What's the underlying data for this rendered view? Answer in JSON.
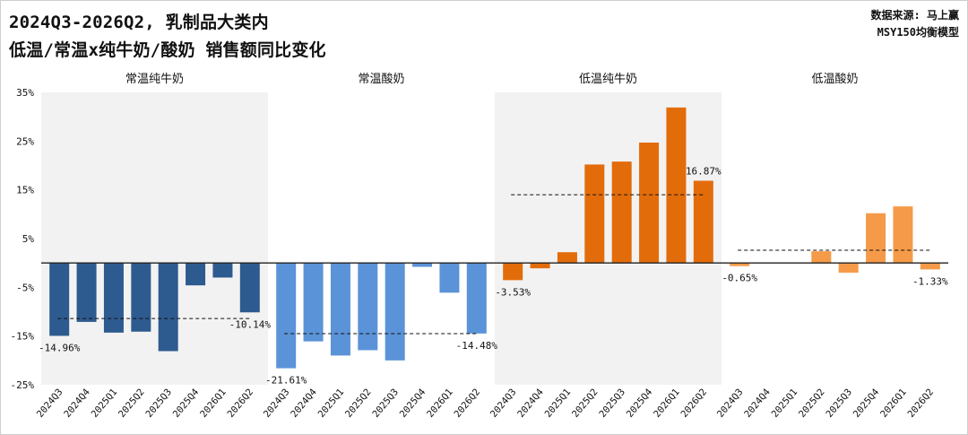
{
  "header": {
    "title_line1": "2024Q3-2026Q2, 乳制品大类内",
    "title_line2": "低温/常温x纯牛奶/酸奶 销售额同比变化",
    "source_line1": "数据来源: 马上赢",
    "source_line2": "MSY150均衡模型"
  },
  "chart_data": {
    "type": "bar",
    "y_ticks": [
      "35%",
      "25%",
      "15%",
      "5%",
      "-5%",
      "-15%",
      "-25%"
    ],
    "y_tick_values": [
      35,
      25,
      15,
      5,
      -5,
      -15,
      -25
    ],
    "ylim": [
      -25,
      35
    ],
    "categories": [
      "2024Q3",
      "2024Q4",
      "2025Q1",
      "2025Q2",
      "2025Q3",
      "2025Q4",
      "2026Q1",
      "2026Q2"
    ],
    "panels": [
      {
        "name": "常温纯牛奶",
        "color": "#2e5b8f",
        "background": "#f2f2f2",
        "values": [
          -14.96,
          -12.1,
          -14.3,
          -14.1,
          -18.1,
          -4.6,
          -3.0,
          -10.14
        ],
        "mean": -11.4,
        "first_label": "-14.96%",
        "last_label": "-10.14%"
      },
      {
        "name": "常温酸奶",
        "color": "#5b93d8",
        "background": "#ffffff",
        "values": [
          -21.61,
          -16.1,
          -19.0,
          -17.9,
          -20.0,
          -0.8,
          -6.1,
          -14.48
        ],
        "mean": -14.5,
        "first_label": "-21.61%",
        "last_label": "-14.48%"
      },
      {
        "name": "低温纯牛奶",
        "color": "#e36c0a",
        "background": "#f2f2f2",
        "values": [
          -3.53,
          -1.1,
          2.2,
          20.2,
          20.8,
          24.7,
          31.9,
          16.87
        ],
        "mean": 14.0,
        "first_label": "-3.53%",
        "last_label": "16.87%"
      },
      {
        "name": "低温酸奶",
        "color": "#f59a48",
        "background": "#ffffff",
        "values": [
          -0.65,
          0.1,
          0.1,
          2.4,
          -2.0,
          10.2,
          11.6,
          -1.33
        ],
        "mean": 2.6,
        "first_label": "-0.65%",
        "last_label": "-1.33%"
      }
    ]
  }
}
